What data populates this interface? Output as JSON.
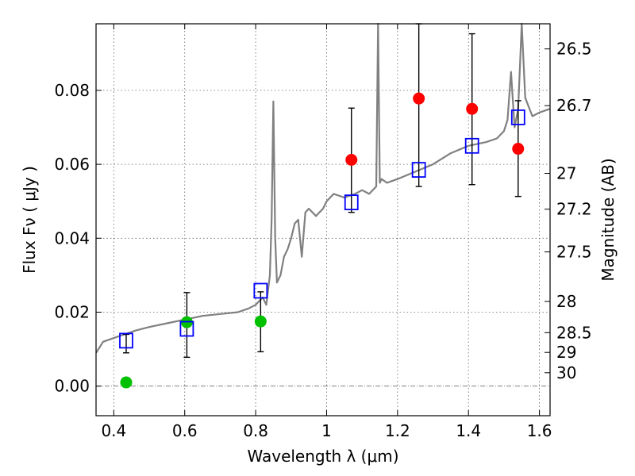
{
  "chart_data": {
    "type": "scatter",
    "title": "",
    "xlabel": "Wavelength  λ (μm)",
    "ylabel": "Flux  Fν  ( μJy )",
    "ylabel_right": "Magnitude (AB)",
    "xlim": [
      0.35,
      1.63
    ],
    "ylim": [
      -0.008,
      0.098
    ],
    "grid": true,
    "x_ticks": [
      0.4,
      0.6,
      0.8,
      1.0,
      1.2,
      1.4,
      1.6
    ],
    "x_tick_labels": [
      "0.4",
      "0.6",
      "0.8",
      "1",
      "1.2",
      "1.4",
      "1.6"
    ],
    "y_ticks": [
      0.0,
      0.02,
      0.04,
      0.06,
      0.08
    ],
    "y_tick_labels": [
      "0.00",
      "0.02",
      "0.04",
      "0.06",
      "0.08"
    ],
    "mag_ticks": [
      26.5,
      26.7,
      27,
      27.2,
      27.5,
      28,
      28.5,
      29,
      30
    ],
    "mag_tick_labels": [
      "26.5",
      "26.7",
      "27",
      "27.2",
      "27.5",
      "28",
      "28.5",
      "29",
      "30"
    ],
    "colors": {
      "model": "#808080",
      "photometry_optical": "#00c000",
      "photometry_ir": "#ff0000",
      "model_bandflux": "#0000ff",
      "errorbar": "#000000",
      "grid": "#666666"
    },
    "series": [
      {
        "name": "model-sed",
        "kind": "line",
        "x": [
          0.35,
          0.37,
          0.4,
          0.43,
          0.46,
          0.5,
          0.55,
          0.6,
          0.65,
          0.7,
          0.75,
          0.78,
          0.8,
          0.82,
          0.83,
          0.84,
          0.845,
          0.85,
          0.855,
          0.86,
          0.87,
          0.88,
          0.89,
          0.9,
          0.91,
          0.92,
          0.93,
          0.94,
          0.95,
          0.97,
          0.99,
          1.0,
          1.02,
          1.05,
          1.08,
          1.1,
          1.12,
          1.14,
          1.145,
          1.15,
          1.155,
          1.17,
          1.2,
          1.25,
          1.3,
          1.35,
          1.4,
          1.45,
          1.48,
          1.5,
          1.51,
          1.52,
          1.53,
          1.54,
          1.55,
          1.56,
          1.58,
          1.6,
          1.63
        ],
        "y": [
          0.009,
          0.012,
          0.013,
          0.014,
          0.015,
          0.016,
          0.017,
          0.018,
          0.019,
          0.0195,
          0.02,
          0.021,
          0.022,
          0.024,
          0.022,
          0.03,
          0.045,
          0.077,
          0.04,
          0.028,
          0.03,
          0.035,
          0.037,
          0.04,
          0.044,
          0.045,
          0.035,
          0.047,
          0.048,
          0.046,
          0.048,
          0.05,
          0.052,
          0.051,
          0.052,
          0.053,
          0.052,
          0.054,
          0.098,
          0.055,
          0.056,
          0.055,
          0.056,
          0.058,
          0.06,
          0.063,
          0.065,
          0.066,
          0.067,
          0.069,
          0.072,
          0.085,
          0.07,
          0.075,
          0.098,
          0.078,
          0.073,
          0.074,
          0.075
        ]
      },
      {
        "name": "photometry-optical",
        "kind": "points",
        "marker": "circle",
        "x": [
          0.435,
          0.606,
          0.814
        ],
        "y": [
          0.001,
          0.0173,
          0.0175
        ],
        "yerr_low": [
          0.009,
          0.0078,
          0.0093
        ],
        "yerr_high": [
          0.014,
          0.0253,
          0.0255
        ]
      },
      {
        "name": "photometry-ir",
        "kind": "points",
        "marker": "circle",
        "x": [
          1.07,
          1.26,
          1.41,
          1.54
        ],
        "y": [
          0.0612,
          0.0778,
          0.075,
          0.0642
        ],
        "yerr_low": [
          0.047,
          0.054,
          0.0545,
          0.0513
        ],
        "yerr_high": [
          0.0752,
          0.098,
          0.0953,
          0.0772
        ]
      },
      {
        "name": "model-bandflux",
        "kind": "points",
        "marker": "open-square",
        "x": [
          0.435,
          0.606,
          0.814,
          1.07,
          1.26,
          1.41,
          1.54
        ],
        "y": [
          0.0123,
          0.0155,
          0.0258,
          0.0497,
          0.0585,
          0.065,
          0.0727
        ]
      }
    ]
  }
}
